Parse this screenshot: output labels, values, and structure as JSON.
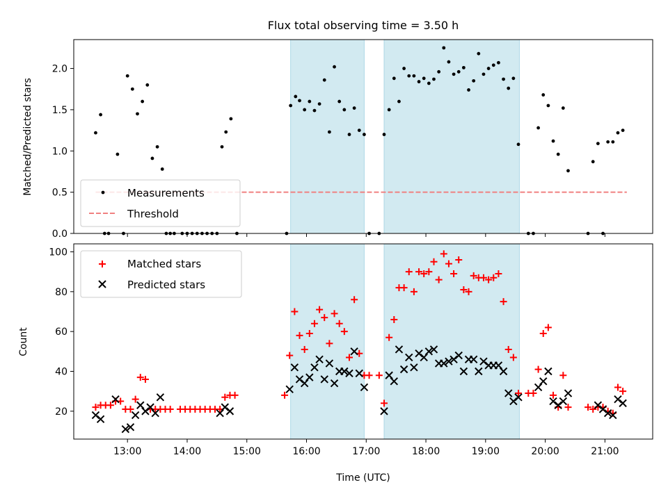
{
  "chart_data": {
    "title": "Flux total observing time = 3.50 h",
    "xlabel": "Time (UTC)",
    "x_tick_labels": [
      "13:00",
      "14:00",
      "15:00",
      "16:00",
      "17:00",
      "18:00",
      "19:00",
      "20:00",
      "21:00"
    ],
    "xlim": [
      "12:06",
      "21:48"
    ],
    "highlight_spans": [
      {
        "start": "15:44",
        "end": "16:58",
        "color": "#add8e6"
      },
      {
        "start": "17:18",
        "end": "19:34",
        "color": "#add8e6"
      }
    ],
    "top": {
      "type": "scatter",
      "ylabel": "Matched/Predicted stars",
      "ylim": [
        0,
        2.35
      ],
      "y_ticks": [
        "0.0",
        "0.5",
        "1.0",
        "1.5",
        "2.0"
      ],
      "legend": {
        "placement": "lower-left",
        "entries": [
          "Measurements",
          "Threshold"
        ]
      },
      "threshold": {
        "name": "Threshold",
        "value": 0.5,
        "x_range": [
          "12:28",
          "21:22"
        ],
        "color": "#f08080"
      },
      "series": [
        {
          "name": "Measurements",
          "color": "#000000",
          "points": [
            [
              "12:28",
              1.22
            ],
            [
              "12:33",
              1.44
            ],
            [
              "12:37",
              0.0
            ],
            [
              "12:41",
              0.0
            ],
            [
              "12:50",
              0.96
            ],
            [
              "12:56",
              0.0
            ],
            [
              "13:00",
              1.91
            ],
            [
              "13:05",
              1.75
            ],
            [
              "13:10",
              1.45
            ],
            [
              "13:15",
              1.6
            ],
            [
              "13:20",
              1.8
            ],
            [
              "13:25",
              0.91
            ],
            [
              "13:30",
              1.05
            ],
            [
              "13:35",
              0.78
            ],
            [
              "13:39",
              0.0
            ],
            [
              "13:43",
              0.0
            ],
            [
              "13:47",
              0.0
            ],
            [
              "13:55",
              0.0
            ],
            [
              "14:00",
              0.0
            ],
            [
              "14:05",
              0.0
            ],
            [
              "14:10",
              0.0
            ],
            [
              "14:15",
              0.0
            ],
            [
              "14:20",
              0.0
            ],
            [
              "14:25",
              0.0
            ],
            [
              "14:30",
              0.0
            ],
            [
              "14:35",
              1.05
            ],
            [
              "14:39",
              1.23
            ],
            [
              "14:44",
              1.39
            ],
            [
              "14:50",
              0.0
            ],
            [
              "15:40",
              0.0
            ],
            [
              "15:44",
              1.55
            ],
            [
              "15:49",
              1.66
            ],
            [
              "15:53",
              1.61
            ],
            [
              "15:58",
              1.5
            ],
            [
              "16:03",
              1.6
            ],
            [
              "16:08",
              1.49
            ],
            [
              "16:13",
              1.57
            ],
            [
              "16:18",
              1.86
            ],
            [
              "16:23",
              1.23
            ],
            [
              "16:28",
              2.02
            ],
            [
              "16:33",
              1.6
            ],
            [
              "16:38",
              1.5
            ],
            [
              "16:43",
              1.2
            ],
            [
              "16:48",
              1.52
            ],
            [
              "16:53",
              1.25
            ],
            [
              "16:58",
              1.2
            ],
            [
              "17:03",
              0.0
            ],
            [
              "17:13",
              0.0
            ],
            [
              "17:18",
              1.2
            ],
            [
              "17:23",
              1.5
            ],
            [
              "17:28",
              1.88
            ],
            [
              "17:33",
              1.6
            ],
            [
              "17:38",
              2.0
            ],
            [
              "17:43",
              1.91
            ],
            [
              "17:48",
              1.91
            ],
            [
              "17:53",
              1.84
            ],
            [
              "17:58",
              1.88
            ],
            [
              "18:03",
              1.82
            ],
            [
              "18:08",
              1.87
            ],
            [
              "18:13",
              1.96
            ],
            [
              "18:18",
              2.25
            ],
            [
              "18:23",
              2.08
            ],
            [
              "18:28",
              1.93
            ],
            [
              "18:33",
              1.96
            ],
            [
              "18:38",
              2.01
            ],
            [
              "18:43",
              1.74
            ],
            [
              "18:48",
              1.85
            ],
            [
              "18:53",
              2.18
            ],
            [
              "18:58",
              1.93
            ],
            [
              "19:03",
              2.0
            ],
            [
              "19:08",
              2.04
            ],
            [
              "19:13",
              2.07
            ],
            [
              "19:18",
              1.87
            ],
            [
              "19:23",
              1.76
            ],
            [
              "19:28",
              1.88
            ],
            [
              "19:33",
              1.08
            ],
            [
              "19:43",
              0.0
            ],
            [
              "19:48",
              0.0
            ],
            [
              "19:53",
              1.28
            ],
            [
              "19:58",
              1.68
            ],
            [
              "20:03",
              1.55
            ],
            [
              "20:08",
              1.12
            ],
            [
              "20:13",
              0.96
            ],
            [
              "20:18",
              1.52
            ],
            [
              "20:23",
              0.76
            ],
            [
              "20:43",
              0.0
            ],
            [
              "20:48",
              0.87
            ],
            [
              "20:53",
              1.09
            ],
            [
              "20:58",
              0.0
            ],
            [
              "21:03",
              1.11
            ],
            [
              "21:08",
              1.11
            ],
            [
              "21:13",
              1.22
            ],
            [
              "21:18",
              1.25
            ]
          ]
        }
      ]
    },
    "bottom": {
      "type": "scatter",
      "ylabel": "Count",
      "ylim": [
        6,
        104
      ],
      "y_ticks": [
        "20",
        "40",
        "60",
        "80",
        "100"
      ],
      "legend": {
        "placement": "top-left",
        "entries": [
          "Matched stars",
          "Predicted stars"
        ]
      },
      "series": [
        {
          "name": "Matched stars",
          "marker": "plus",
          "color": "#ff0000",
          "points": [
            [
              "12:28",
              22
            ],
            [
              "12:33",
              23
            ],
            [
              "12:38",
              23
            ],
            [
              "12:43",
              23
            ],
            [
              "12:48",
              25
            ],
            [
              "12:53",
              25
            ],
            [
              "12:58",
              21
            ],
            [
              "13:03",
              21
            ],
            [
              "13:08",
              26
            ],
            [
              "13:13",
              37
            ],
            [
              "13:18",
              36
            ],
            [
              "13:23",
              21
            ],
            [
              "13:28",
              21
            ],
            [
              "13:33",
              21
            ],
            [
              "13:38",
              21
            ],
            [
              "13:43",
              21
            ],
            [
              "13:53",
              21
            ],
            [
              "13:58",
              21
            ],
            [
              "14:03",
              21
            ],
            [
              "14:08",
              21
            ],
            [
              "14:13",
              21
            ],
            [
              "14:18",
              21
            ],
            [
              "14:23",
              21
            ],
            [
              "14:28",
              21
            ],
            [
              "14:33",
              21
            ],
            [
              "14:38",
              27
            ],
            [
              "14:43",
              28
            ],
            [
              "14:48",
              28
            ],
            [
              "15:38",
              28
            ],
            [
              "15:43",
              48
            ],
            [
              "15:48",
              70
            ],
            [
              "15:53",
              58
            ],
            [
              "15:58",
              51
            ],
            [
              "16:03",
              59
            ],
            [
              "16:08",
              64
            ],
            [
              "16:13",
              71
            ],
            [
              "16:18",
              67
            ],
            [
              "16:23",
              54
            ],
            [
              "16:28",
              69
            ],
            [
              "16:33",
              64
            ],
            [
              "16:38",
              60
            ],
            [
              "16:43",
              47
            ],
            [
              "16:48",
              76
            ],
            [
              "16:53",
              49
            ],
            [
              "16:58",
              38
            ],
            [
              "17:03",
              38
            ],
            [
              "17:13",
              38
            ],
            [
              "17:18",
              24
            ],
            [
              "17:23",
              57
            ],
            [
              "17:28",
              66
            ],
            [
              "17:33",
              82
            ],
            [
              "17:38",
              82
            ],
            [
              "17:43",
              90
            ],
            [
              "17:48",
              80
            ],
            [
              "17:53",
              90
            ],
            [
              "17:58",
              89
            ],
            [
              "18:03",
              90
            ],
            [
              "18:08",
              95
            ],
            [
              "18:13",
              86
            ],
            [
              "18:18",
              99
            ],
            [
              "18:23",
              94
            ],
            [
              "18:28",
              89
            ],
            [
              "18:33",
              96
            ],
            [
              "18:38",
              81
            ],
            [
              "18:43",
              80
            ],
            [
              "18:48",
              88
            ],
            [
              "18:53",
              87
            ],
            [
              "18:58",
              87
            ],
            [
              "19:03",
              86
            ],
            [
              "19:08",
              87
            ],
            [
              "19:13",
              89
            ],
            [
              "19:18",
              75
            ],
            [
              "19:23",
              51
            ],
            [
              "19:28",
              47
            ],
            [
              "19:33",
              29
            ],
            [
              "19:43",
              29
            ],
            [
              "19:48",
              29
            ],
            [
              "19:53",
              41
            ],
            [
              "19:58",
              59
            ],
            [
              "20:03",
              62
            ],
            [
              "20:08",
              28
            ],
            [
              "20:13",
              22
            ],
            [
              "20:18",
              38
            ],
            [
              "20:23",
              22
            ],
            [
              "20:43",
              22
            ],
            [
              "20:48",
              21
            ],
            [
              "20:53",
              22
            ],
            [
              "20:58",
              22
            ],
            [
              "21:03",
              20
            ],
            [
              "21:08",
              19
            ],
            [
              "21:13",
              32
            ],
            [
              "21:18",
              30
            ]
          ]
        },
        {
          "name": "Predicted stars",
          "marker": "x",
          "color": "#000000",
          "points": [
            [
              "12:28",
              18
            ],
            [
              "12:33",
              16
            ],
            [
              "12:48",
              26
            ],
            [
              "12:58",
              11
            ],
            [
              "13:03",
              12
            ],
            [
              "13:08",
              18
            ],
            [
              "13:13",
              23
            ],
            [
              "13:18",
              20
            ],
            [
              "13:23",
              22
            ],
            [
              "13:28",
              19
            ],
            [
              "13:33",
              27
            ],
            [
              "14:33",
              19
            ],
            [
              "14:38",
              22
            ],
            [
              "14:43",
              20
            ],
            [
              "15:43",
              31
            ],
            [
              "15:48",
              42
            ],
            [
              "15:53",
              36
            ],
            [
              "15:58",
              34
            ],
            [
              "16:03",
              37
            ],
            [
              "16:08",
              42
            ],
            [
              "16:13",
              46
            ],
            [
              "16:18",
              36
            ],
            [
              "16:23",
              44
            ],
            [
              "16:28",
              34
            ],
            [
              "16:33",
              40
            ],
            [
              "16:38",
              40
            ],
            [
              "16:43",
              39
            ],
            [
              "16:48",
              50
            ],
            [
              "16:53",
              39
            ],
            [
              "16:58",
              32
            ],
            [
              "17:18",
              20
            ],
            [
              "17:23",
              38
            ],
            [
              "17:28",
              35
            ],
            [
              "17:33",
              51
            ],
            [
              "17:38",
              41
            ],
            [
              "17:43",
              47
            ],
            [
              "17:48",
              42
            ],
            [
              "17:53",
              49
            ],
            [
              "17:58",
              47
            ],
            [
              "18:03",
              50
            ],
            [
              "18:08",
              51
            ],
            [
              "18:13",
              44
            ],
            [
              "18:18",
              44
            ],
            [
              "18:23",
              45
            ],
            [
              "18:28",
              46
            ],
            [
              "18:33",
              48
            ],
            [
              "18:38",
              40
            ],
            [
              "18:43",
              46
            ],
            [
              "18:48",
              46
            ],
            [
              "18:53",
              40
            ],
            [
              "18:58",
              45
            ],
            [
              "19:03",
              43
            ],
            [
              "19:08",
              43
            ],
            [
              "19:13",
              43
            ],
            [
              "19:18",
              40
            ],
            [
              "19:23",
              29
            ],
            [
              "19:28",
              25
            ],
            [
              "19:33",
              27
            ],
            [
              "19:53",
              32
            ],
            [
              "19:58",
              35
            ],
            [
              "20:03",
              40
            ],
            [
              "20:08",
              25
            ],
            [
              "20:13",
              23
            ],
            [
              "20:18",
              25
            ],
            [
              "20:23",
              29
            ],
            [
              "20:53",
              23
            ],
            [
              "20:58",
              21
            ],
            [
              "21:03",
              19
            ],
            [
              "21:08",
              18
            ],
            [
              "21:13",
              26
            ],
            [
              "21:18",
              24
            ]
          ]
        }
      ]
    }
  }
}
